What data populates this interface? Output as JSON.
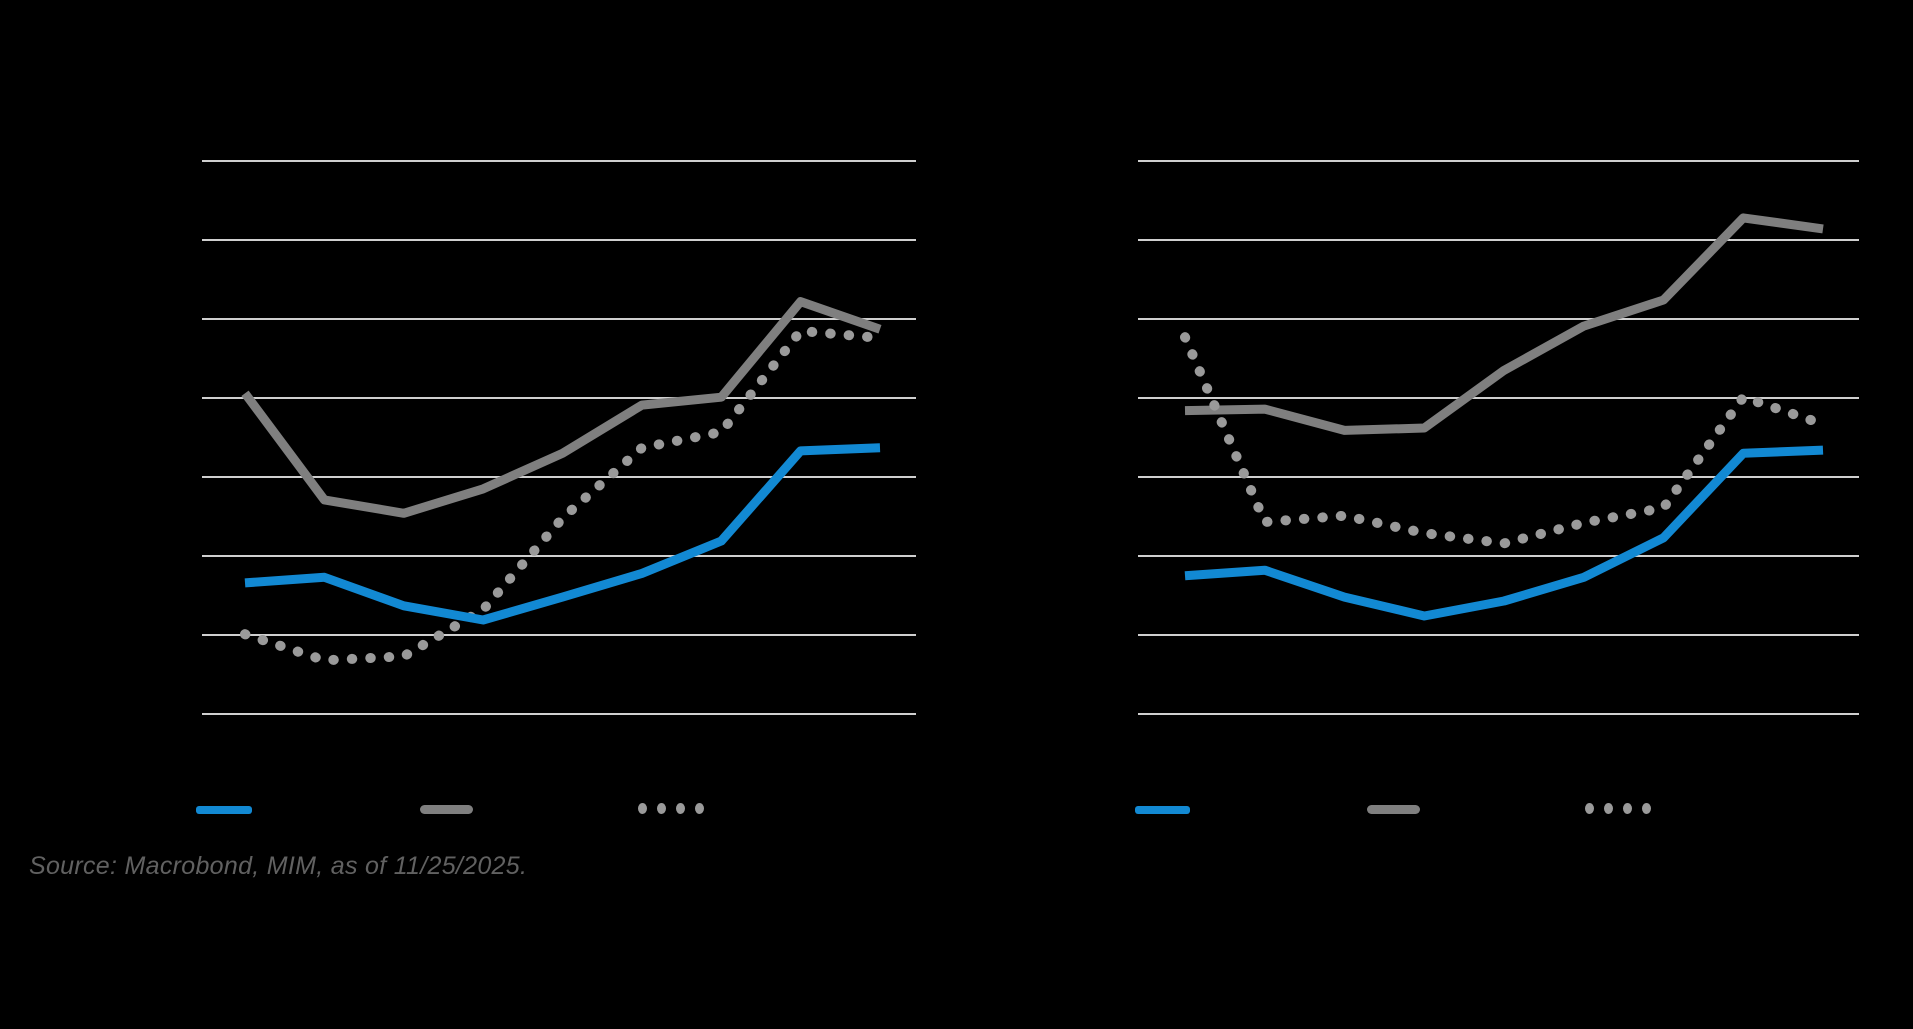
{
  "source_note": "Source: Macrobond, MIM, as of 11/25/2025.",
  "colors": {
    "background": "#000000",
    "blue": "#1289d3",
    "gray": "#7f7f7f",
    "dotted_gray": "#9a9a9a",
    "gridline": "#cfcfcf",
    "source_text": "#616161"
  },
  "chart_data": [
    {
      "type": "line",
      "panel": "left",
      "x_periods": [
        1,
        2,
        3,
        4,
        5,
        6,
        7,
        8,
        9
      ],
      "y_units": "gridline intervals above bottom gridline (no axis tick labels visible in image)",
      "gridline_count": 8,
      "grid_on": true,
      "legend_position": "bottom",
      "series": [
        {
          "name": "solid-blue",
          "style": "solid",
          "color_key": "blue",
          "values": [
            1.66,
            1.73,
            1.37,
            1.19,
            1.48,
            1.78,
            2.19,
            3.33,
            3.37
          ]
        },
        {
          "name": "solid-gray",
          "style": "solid",
          "color_key": "gray",
          "values": [
            4.06,
            2.71,
            2.54,
            2.85,
            3.3,
            3.91,
            4.01,
            5.22,
            4.87
          ]
        },
        {
          "name": "dotted-gray",
          "style": "dotted",
          "color_key": "dotted_gray",
          "values": [
            1.01,
            0.68,
            0.73,
            1.32,
            2.48,
            3.37,
            3.57,
            4.85,
            4.76
          ]
        }
      ],
      "legend": [
        {
          "swatch": "blue-solid"
        },
        {
          "swatch": "gray-solid"
        },
        {
          "swatch": "gray-dotted"
        }
      ]
    },
    {
      "type": "line",
      "panel": "right",
      "x_periods": [
        1,
        2,
        3,
        4,
        5,
        6,
        7,
        8,
        9
      ],
      "y_units": "gridline intervals above bottom gridline (no axis tick labels visible in image)",
      "gridline_count": 8,
      "grid_on": true,
      "legend_position": "bottom",
      "series": [
        {
          "name": "solid-blue",
          "style": "solid",
          "color_key": "blue",
          "values": [
            1.75,
            1.82,
            1.48,
            1.24,
            1.43,
            1.73,
            2.23,
            3.3,
            3.34
          ]
        },
        {
          "name": "solid-gray",
          "style": "solid",
          "color_key": "gray",
          "values": [
            3.84,
            3.86,
            3.59,
            3.62,
            4.35,
            4.91,
            5.24,
            6.28,
            6.14
          ]
        },
        {
          "name": "dotted-gray",
          "style": "dotted",
          "color_key": "dotted_gray",
          "values": [
            4.77,
            2.43,
            2.51,
            2.29,
            2.16,
            2.42,
            2.61,
            4.01,
            3.67
          ]
        }
      ],
      "legend": [
        {
          "swatch": "blue-solid"
        },
        {
          "swatch": "gray-solid"
        },
        {
          "swatch": "gray-dotted"
        }
      ]
    }
  ]
}
